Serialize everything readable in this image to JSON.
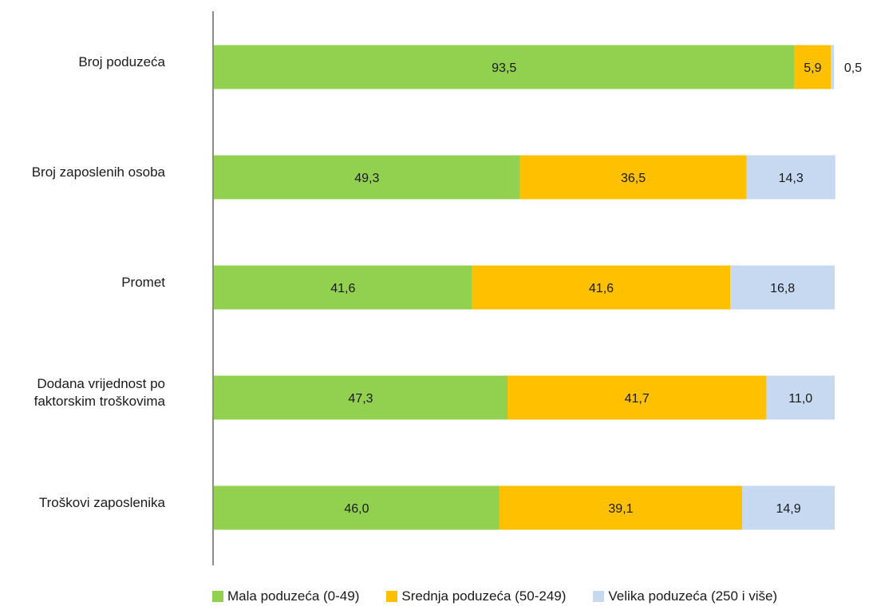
{
  "chart_data": {
    "type": "bar",
    "orientation": "horizontal",
    "stacked": true,
    "categories": [
      "Broj poduzeća",
      "Broj zaposlenih osoba",
      "Promet",
      "Dodana vrijednost po faktorskim troškovima",
      "Troškovi zaposlenika"
    ],
    "category_lines": [
      [
        "Broj poduzeća"
      ],
      [
        "Broj zaposlenih osoba"
      ],
      [
        "Promet"
      ],
      [
        "Dodana vrijednost po",
        "faktorskim troškovima"
      ],
      [
        "Troškovi zaposlenika"
      ]
    ],
    "series": [
      {
        "name": "Mala poduzeća (0-49)",
        "color": "#92d050",
        "values": [
          93.5,
          49.3,
          41.6,
          47.3,
          46.0
        ],
        "labels": [
          "93,5",
          "49,3",
          "41,6",
          "47,3",
          "46,0"
        ]
      },
      {
        "name": "Srednja poduzeća (50-249)",
        "color": "#ffc000",
        "values": [
          5.9,
          36.5,
          41.6,
          41.7,
          39.1
        ],
        "labels": [
          "5,9",
          "36,5",
          "41,6",
          "41,7",
          "39,1"
        ]
      },
      {
        "name": "Velika poduzeća (250 i više)",
        "color": "#c6d9f1",
        "values": [
          0.5,
          14.3,
          16.8,
          11.0,
          14.9
        ],
        "labels": [
          "0,5",
          "14,3",
          "16,8",
          "11,0",
          "14,9"
        ]
      }
    ],
    "xlim": [
      0,
      100
    ],
    "grid": false,
    "legend_position": "bottom"
  }
}
